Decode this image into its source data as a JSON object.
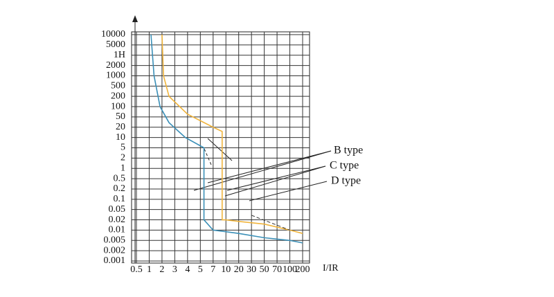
{
  "chart_data": {
    "type": "line",
    "log_scale": true,
    "grid": true,
    "x_label": "I/IR",
    "xticks": [
      0.5,
      1,
      2,
      3,
      4,
      5,
      7,
      10,
      20,
      30,
      50,
      70,
      100,
      200
    ],
    "yticks": [
      10000,
      5000,
      {
        "value": 3600,
        "label": "1H"
      },
      2000,
      1000,
      500,
      200,
      100,
      50,
      20,
      10,
      5,
      2,
      1,
      0.5,
      0.2,
      0.1,
      0.05,
      0.02,
      0.01,
      0.005,
      0.002,
      0.001
    ],
    "xlim": [
      0.5,
      200
    ],
    "ylim": [
      0.001,
      10000
    ],
    "series": [
      {
        "name": "B type",
        "color": "#3a8fb7",
        "dash": false,
        "x": [
          1.1,
          1.3,
          1.8,
          2.5,
          3.8,
          5.5,
          5.5,
          7,
          10,
          20,
          50,
          100,
          200
        ],
        "values": [
          10000,
          1000,
          100,
          30,
          10,
          5,
          0.02,
          0.01,
          0.009,
          0.008,
          0.006,
          0.005,
          0.004
        ]
      },
      {
        "name": "C type",
        "color": "#f0b43c",
        "dash": false,
        "x": [
          2,
          2.1,
          2.5,
          4,
          7,
          9,
          9,
          10,
          20,
          50,
          100,
          200
        ],
        "values": [
          10000,
          1000,
          200,
          60,
          20,
          15,
          0.02,
          0.02,
          0.018,
          0.015,
          0.01,
          0.008
        ]
      },
      {
        "name": "D type",
        "color": "#333333",
        "dash": true,
        "x": [
          30,
          100
        ],
        "values": [
          0.03,
          0.01
        ]
      }
    ]
  }
}
